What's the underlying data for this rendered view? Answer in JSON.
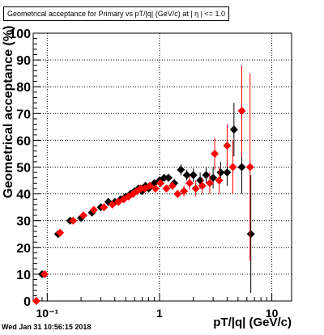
{
  "chart_data": {
    "type": "scatter",
    "title": "Geometrical acceptance for Primary vs pT/|q| (GeV/c) at | η | <= 1.0",
    "xlabel": "pT/|q| (GeV/c)",
    "ylabel": "Geometrical acceptance (%)",
    "xscale": "log",
    "xlim": [
      0.075,
      15
    ],
    "ylim": [
      0,
      100
    ],
    "grid": true,
    "x_ticks": [
      {
        "value": 0.1,
        "label": "10⁻¹"
      },
      {
        "value": 1,
        "label": "1"
      },
      {
        "value": 10,
        "label": "10"
      }
    ],
    "y_ticks": [
      0,
      10,
      20,
      30,
      40,
      50,
      60,
      70,
      80,
      90,
      100
    ],
    "series": [
      {
        "color": "#000000",
        "marker": "diamond",
        "points": [
          {
            "x": 0.09,
            "y": 10,
            "err": 0.5
          },
          {
            "x": 0.125,
            "y": 25,
            "err": 1
          },
          {
            "x": 0.16,
            "y": 30,
            "err": 0.8
          },
          {
            "x": 0.2,
            "y": 31,
            "err": 0.5
          },
          {
            "x": 0.25,
            "y": 33,
            "err": 0.5
          },
          {
            "x": 0.3,
            "y": 35,
            "err": 0.4
          },
          {
            "x": 0.35,
            "y": 37,
            "err": 0.4
          },
          {
            "x": 0.4,
            "y": 37,
            "err": 0.5
          },
          {
            "x": 0.45,
            "y": 38,
            "err": 0.5
          },
          {
            "x": 0.5,
            "y": 39,
            "err": 0.6
          },
          {
            "x": 0.55,
            "y": 40,
            "err": 0.6
          },
          {
            "x": 0.6,
            "y": 41,
            "err": 0.6
          },
          {
            "x": 0.65,
            "y": 42,
            "err": 0.7
          },
          {
            "x": 0.7,
            "y": 41,
            "err": 0.7
          },
          {
            "x": 0.75,
            "y": 43,
            "err": 0.8
          },
          {
            "x": 0.8,
            "y": 42,
            "err": 0.8
          },
          {
            "x": 0.9,
            "y": 44,
            "err": 1
          },
          {
            "x": 1.0,
            "y": 45,
            "err": 1
          },
          {
            "x": 1.1,
            "y": 46,
            "err": 1.2
          },
          {
            "x": 1.2,
            "y": 46,
            "err": 1.5
          },
          {
            "x": 1.35,
            "y": 44,
            "err": 1.5
          },
          {
            "x": 1.55,
            "y": 49,
            "err": 2
          },
          {
            "x": 1.75,
            "y": 47,
            "err": 2
          },
          {
            "x": 2.0,
            "y": 47,
            "err": 2.5
          },
          {
            "x": 2.3,
            "y": 45,
            "err": 3
          },
          {
            "x": 2.6,
            "y": 47,
            "err": 3
          },
          {
            "x": 3.0,
            "y": 46,
            "err": 4
          },
          {
            "x": 3.5,
            "y": 48,
            "err": 4
          },
          {
            "x": 4.0,
            "y": 48,
            "err": 5
          },
          {
            "x": 4.6,
            "y": 64,
            "err": 10
          },
          {
            "x": 5.4,
            "y": 50,
            "err": 10
          },
          {
            "x": 6.5,
            "y": 25,
            "err": 22
          }
        ]
      },
      {
        "color": "#ff0000",
        "marker": "diamond",
        "points": [
          {
            "x": 0.08,
            "y": 0,
            "err": 0
          },
          {
            "x": 0.095,
            "y": 10,
            "err": 0.5
          },
          {
            "x": 0.13,
            "y": 25.5,
            "err": 1
          },
          {
            "x": 0.17,
            "y": 30,
            "err": 0.8
          },
          {
            "x": 0.21,
            "y": 32,
            "err": 0.5
          },
          {
            "x": 0.26,
            "y": 34,
            "err": 0.5
          },
          {
            "x": 0.32,
            "y": 35,
            "err": 0.4
          },
          {
            "x": 0.38,
            "y": 36,
            "err": 0.4
          },
          {
            "x": 0.43,
            "y": 37,
            "err": 0.5
          },
          {
            "x": 0.48,
            "y": 38,
            "err": 0.5
          },
          {
            "x": 0.53,
            "y": 39,
            "err": 0.6
          },
          {
            "x": 0.58,
            "y": 40,
            "err": 0.6
          },
          {
            "x": 0.63,
            "y": 41,
            "err": 0.6
          },
          {
            "x": 0.68,
            "y": 42,
            "err": 0.7
          },
          {
            "x": 0.74,
            "y": 42,
            "err": 0.7
          },
          {
            "x": 0.82,
            "y": 43,
            "err": 0.8
          },
          {
            "x": 0.92,
            "y": 42,
            "err": 1
          },
          {
            "x": 1.02,
            "y": 44,
            "err": 1
          },
          {
            "x": 1.15,
            "y": 42,
            "err": 1.2
          },
          {
            "x": 1.3,
            "y": 43,
            "err": 1.5
          },
          {
            "x": 1.45,
            "y": 40,
            "err": 1.5
          },
          {
            "x": 1.65,
            "y": 41,
            "err": 2
          },
          {
            "x": 1.85,
            "y": 44,
            "err": 2.5
          },
          {
            "x": 2.1,
            "y": 42,
            "err": 3
          },
          {
            "x": 2.4,
            "y": 43,
            "err": 3
          },
          {
            "x": 2.8,
            "y": 44,
            "err": 4
          },
          {
            "x": 3.1,
            "y": 55,
            "err": 6
          },
          {
            "x": 3.4,
            "y": 45,
            "err": 5
          },
          {
            "x": 4.0,
            "y": 58,
            "err": 8
          },
          {
            "x": 4.5,
            "y": 50,
            "err": 10
          },
          {
            "x": 5.4,
            "y": 71,
            "err": 17
          },
          {
            "x": 6.4,
            "y": 50,
            "err": 35
          }
        ]
      }
    ]
  },
  "footer": {
    "timestamp": "Wed Jan 31 10:56:15 2018"
  }
}
